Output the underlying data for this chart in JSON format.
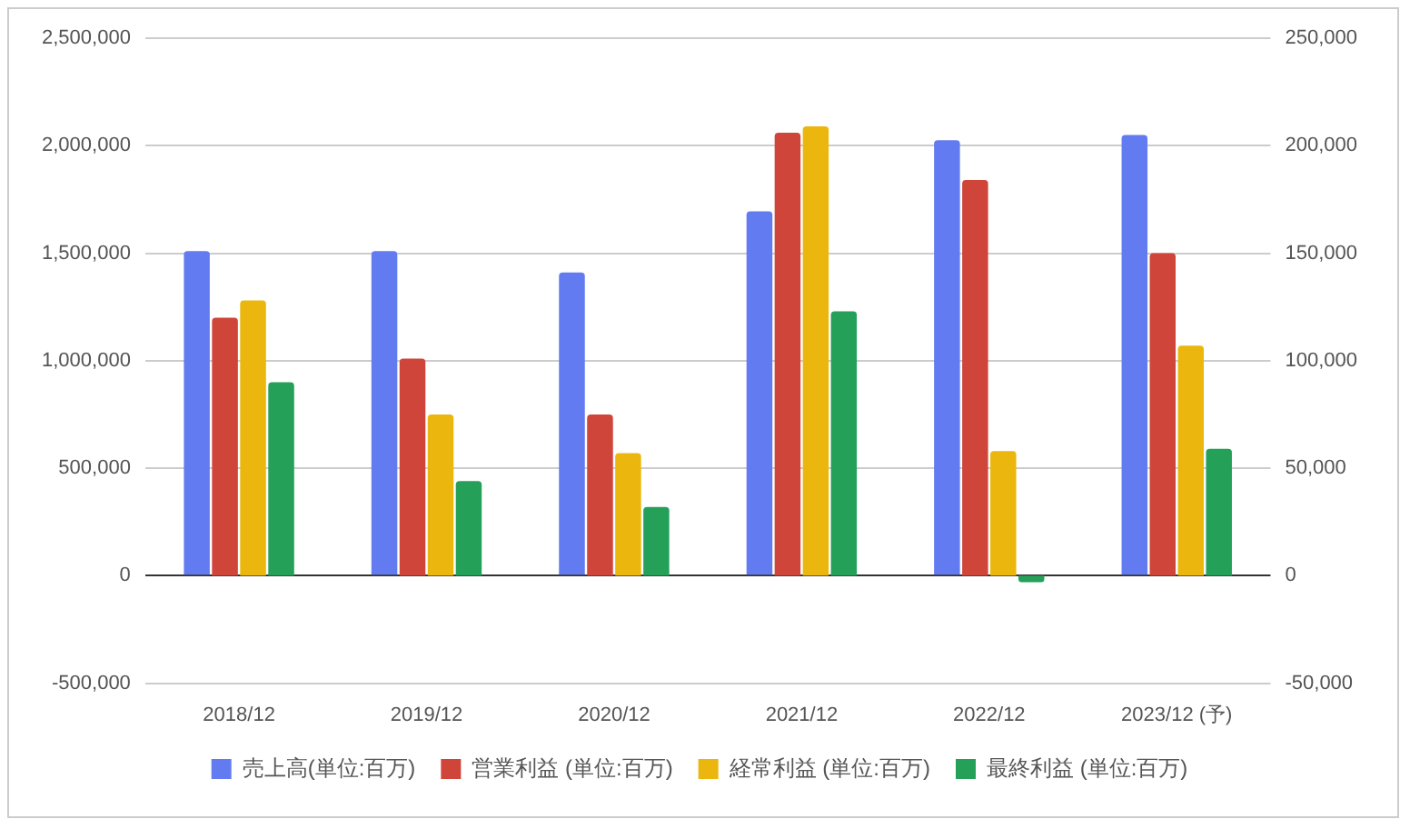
{
  "chart_data": {
    "type": "bar",
    "categories": [
      "2018/12",
      "2019/12",
      "2020/12",
      "2021/12",
      "2022/12",
      "2023/12 (予)"
    ],
    "series": [
      {
        "name": "売上高(単位:百万)",
        "color": "#637bf0",
        "values": [
          1510000,
          1510000,
          1410000,
          1695000,
          2025000,
          2050000
        ]
      },
      {
        "name": "営業利益 (単位:百万)",
        "color": "#d0453a",
        "axis": "y2",
        "values": [
          120000,
          101000,
          75000,
          206000,
          184000,
          150000
        ]
      },
      {
        "name": "経常利益 (単位:百万)",
        "color": "#ebb70e",
        "axis": "y2",
        "values": [
          128000,
          75000,
          57000,
          209000,
          58000,
          107000
        ]
      },
      {
        "name": "最終利益 (単位:百万)",
        "color": "#24a059",
        "axis": "y2",
        "values": [
          90000,
          44000,
          32000,
          123000,
          -3000,
          59000
        ]
      }
    ],
    "ylim": [
      -500000,
      2500000
    ],
    "yticks": [
      {
        "value": -500000,
        "label": "-500,000"
      },
      {
        "value": 0,
        "label": "0"
      },
      {
        "value": 500000,
        "label": "500,000"
      },
      {
        "value": 1000000,
        "label": "1,000,000"
      },
      {
        "value": 1500000,
        "label": "1,500,000"
      },
      {
        "value": 2000000,
        "label": "2,000,000"
      },
      {
        "value": 2500000,
        "label": "2,500,000"
      }
    ],
    "y2lim": [
      -50000,
      250000
    ],
    "y2ticks": [
      {
        "value": -50000,
        "label": "-50,000"
      },
      {
        "value": 0,
        "label": "0"
      },
      {
        "value": 50000,
        "label": "50,000"
      },
      {
        "value": 100000,
        "label": "100,000"
      },
      {
        "value": 150000,
        "label": "150,000"
      },
      {
        "value": 200000,
        "label": "200,000"
      },
      {
        "value": 250000,
        "label": "250,000"
      }
    ],
    "grid": true,
    "legend": "bottom"
  }
}
